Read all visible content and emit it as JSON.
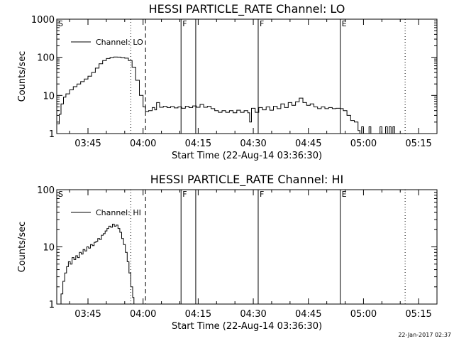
{
  "footer": {
    "timestamp": "22-Jan-2017 02:37"
  },
  "chart_data": [
    {
      "type": "line",
      "title": "HESSI PARTICLE_RATE Channel: LO",
      "xlabel": "Start Time (22-Aug-14 03:36:30)",
      "ylabel": "Counts/sec",
      "yscale": "log",
      "xlim": [
        "03:36:30",
        "05:20:00"
      ],
      "ylim": [
        1,
        1000
      ],
      "x_ticks": [
        "03:45",
        "04:00",
        "04:15",
        "04:30",
        "04:45",
        "05:00",
        "05:15"
      ],
      "y_ticks": [
        "1",
        "10",
        "100",
        "1000"
      ],
      "legend": {
        "position": "top-left",
        "entries": [
          "Channel: LO"
        ]
      },
      "markers": [
        {
          "time": "03:36:30",
          "label": "S",
          "style": "dotted"
        },
        {
          "time": "03:56:40",
          "label": "",
          "style": "dotted"
        },
        {
          "time": "04:00:40",
          "label": "",
          "style": "dashed"
        },
        {
          "time": "04:10:20",
          "label": "F",
          "style": "solid"
        },
        {
          "time": "04:14:20",
          "label": "",
          "style": "solid"
        },
        {
          "time": "04:31:20",
          "label": "F",
          "style": "solid"
        },
        {
          "time": "04:53:40",
          "label": "E",
          "style": "solid"
        },
        {
          "time": "05:11:20",
          "label": "",
          "style": "dotted"
        }
      ],
      "series": [
        {
          "name": "Channel: LO",
          "points": [
            [
              "03:36:40",
              1.8
            ],
            [
              "03:37:10",
              3.2
            ],
            [
              "03:37:40",
              6
            ],
            [
              "03:38:20",
              9
            ],
            [
              "03:39:00",
              11
            ],
            [
              "03:40:00",
              14
            ],
            [
              "03:41:00",
              17
            ],
            [
              "03:42:00",
              20
            ],
            [
              "03:43:00",
              23
            ],
            [
              "03:44:00",
              27
            ],
            [
              "03:45:00",
              32
            ],
            [
              "03:46:00",
              40
            ],
            [
              "03:47:00",
              52
            ],
            [
              "03:48:00",
              68
            ],
            [
              "03:49:00",
              82
            ],
            [
              "03:50:00",
              93
            ],
            [
              "03:51:00",
              99
            ],
            [
              "03:52:00",
              102
            ],
            [
              "03:53:00",
              101
            ],
            [
              "03:54:00",
              98
            ],
            [
              "03:55:00",
              95
            ],
            [
              "03:56:00",
              82
            ],
            [
              "03:57:00",
              55
            ],
            [
              "03:58:00",
              25
            ],
            [
              "03:59:00",
              10
            ],
            [
              "04:00:00",
              5
            ],
            [
              "04:00:40",
              3.8
            ],
            [
              "04:01:30",
              4.0
            ],
            [
              "04:02:30",
              4.8
            ],
            [
              "04:03:10",
              4.2
            ],
            [
              "04:03:40",
              6.5
            ],
            [
              "04:04:30",
              4.9
            ],
            [
              "04:05:30",
              5.2
            ],
            [
              "04:06:30",
              4.8
            ],
            [
              "04:07:30",
              5.1
            ],
            [
              "04:08:30",
              4.7
            ],
            [
              "04:09:30",
              5.0
            ],
            [
              "04:10:30",
              4.6
            ],
            [
              "04:11:30",
              5.2
            ],
            [
              "04:12:30",
              4.8
            ],
            [
              "04:13:30",
              5.3
            ],
            [
              "04:14:30",
              4.9
            ],
            [
              "04:15:30",
              5.8
            ],
            [
              "04:16:30",
              4.9
            ],
            [
              "04:17:30",
              5.2
            ],
            [
              "04:18:30",
              4.5
            ],
            [
              "04:19:30",
              4.0
            ],
            [
              "04:20:30",
              3.6
            ],
            [
              "04:21:30",
              4.0
            ],
            [
              "04:22:30",
              3.6
            ],
            [
              "04:23:30",
              4.0
            ],
            [
              "04:24:30",
              3.5
            ],
            [
              "04:25:30",
              4.1
            ],
            [
              "04:26:30",
              3.6
            ],
            [
              "04:27:30",
              4.0
            ],
            [
              "04:28:30",
              3.5
            ],
            [
              "04:29:00",
              2.0
            ],
            [
              "04:29:30",
              4.6
            ],
            [
              "04:30:30",
              3.6
            ],
            [
              "04:31:30",
              4.8
            ],
            [
              "04:32:30",
              4.2
            ],
            [
              "04:33:30",
              5.0
            ],
            [
              "04:34:30",
              4.1
            ],
            [
              "04:35:30",
              5.2
            ],
            [
              "04:36:30",
              4.5
            ],
            [
              "04:37:30",
              6.0
            ],
            [
              "04:38:30",
              4.8
            ],
            [
              "04:39:30",
              6.5
            ],
            [
              "04:40:30",
              5.5
            ],
            [
              "04:41:30",
              6.8
            ],
            [
              "04:42:30",
              8.5
            ],
            [
              "04:43:30",
              6.5
            ],
            [
              "04:44:30",
              5.5
            ],
            [
              "04:45:30",
              6.0
            ],
            [
              "04:46:30",
              5.0
            ],
            [
              "04:47:30",
              4.5
            ],
            [
              "04:48:30",
              5.0
            ],
            [
              "04:49:30",
              4.5
            ],
            [
              "04:50:30",
              4.8
            ],
            [
              "04:51:30",
              4.5
            ],
            [
              "04:52:30",
              4.6
            ],
            [
              "04:53:40",
              4.5
            ],
            [
              "04:54:30",
              4.0
            ],
            [
              "04:55:30",
              3.0
            ],
            [
              "04:56:30",
              2.2
            ],
            [
              "04:57:30",
              2.0
            ],
            [
              "04:58:30",
              1.2
            ],
            [
              "04:59:00",
              1.0
            ],
            [
              "04:59:30",
              1.5
            ],
            [
              "05:00:00",
              1.0
            ],
            [
              "05:01:00",
              1.0
            ],
            [
              "05:01:30",
              1.5
            ],
            [
              "05:02:00",
              1.0
            ],
            [
              "05:04:00",
              1.0
            ],
            [
              "05:04:30",
              1.5
            ],
            [
              "05:05:00",
              1.0
            ],
            [
              "05:06:00",
              1.5
            ],
            [
              "05:06:30",
              1.0
            ],
            [
              "05:07:00",
              1.5
            ],
            [
              "05:07:30",
              1.0
            ],
            [
              "05:08:00",
              1.5
            ],
            [
              "05:08:30",
              1.0
            ]
          ]
        }
      ]
    },
    {
      "type": "line",
      "title": "HESSI PARTICLE_RATE Channel: HI",
      "xlabel": "Start Time (22-Aug-14 03:36:30)",
      "ylabel": "Counts/sec",
      "yscale": "log",
      "xlim": [
        "03:36:30",
        "05:20:00"
      ],
      "ylim": [
        1,
        100
      ],
      "x_ticks": [
        "03:45",
        "04:00",
        "04:15",
        "04:30",
        "04:45",
        "05:00",
        "05:15"
      ],
      "y_ticks": [
        "1",
        "10",
        "100"
      ],
      "legend": {
        "position": "top-left",
        "entries": [
          "Channel: HI"
        ]
      },
      "markers": [
        {
          "time": "03:36:30",
          "label": "S",
          "style": "dotted"
        },
        {
          "time": "03:56:40",
          "label": "",
          "style": "dotted"
        },
        {
          "time": "04:00:40",
          "label": "",
          "style": "dashed"
        },
        {
          "time": "04:10:20",
          "label": "F",
          "style": "solid"
        },
        {
          "time": "04:14:20",
          "label": "",
          "style": "solid"
        },
        {
          "time": "04:31:20",
          "label": "F",
          "style": "solid"
        },
        {
          "time": "04:53:40",
          "label": "E",
          "style": "solid"
        },
        {
          "time": "05:11:20",
          "label": "",
          "style": "dotted"
        }
      ],
      "series": [
        {
          "name": "Channel: HI",
          "points": [
            [
              "03:37:10",
              1.0
            ],
            [
              "03:37:40",
              1.5
            ],
            [
              "03:38:10",
              2.5
            ],
            [
              "03:38:40",
              3.5
            ],
            [
              "03:39:10",
              4.5
            ],
            [
              "03:39:40",
              5.5
            ],
            [
              "03:40:10",
              5.0
            ],
            [
              "03:40:40",
              6.5
            ],
            [
              "03:41:10",
              6.0
            ],
            [
              "03:41:40",
              7.0
            ],
            [
              "03:42:10",
              6.5
            ],
            [
              "03:42:40",
              8.0
            ],
            [
              "03:43:10",
              7.5
            ],
            [
              "03:43:40",
              9.0
            ],
            [
              "03:44:10",
              8.5
            ],
            [
              "03:44:40",
              10.0
            ],
            [
              "03:45:10",
              9.5
            ],
            [
              "03:45:40",
              11.0
            ],
            [
              "03:46:10",
              10.5
            ],
            [
              "03:46:40",
              12.0
            ],
            [
              "03:47:10",
              12.5
            ],
            [
              "03:47:40",
              14.0
            ],
            [
              "03:48:10",
              13.5
            ],
            [
              "03:48:40",
              16.0
            ],
            [
              "03:49:10",
              17.0
            ],
            [
              "03:49:40",
              19.0
            ],
            [
              "03:50:10",
              21.0
            ],
            [
              "03:50:40",
              23.0
            ],
            [
              "03:51:10",
              22.0
            ],
            [
              "03:51:40",
              25.0
            ],
            [
              "03:52:10",
              23.0
            ],
            [
              "03:52:40",
              24.0
            ],
            [
              "03:53:10",
              21.0
            ],
            [
              "03:53:40",
              18.0
            ],
            [
              "03:54:10",
              14.0
            ],
            [
              "03:54:40",
              11.0
            ],
            [
              "03:55:10",
              8.0
            ],
            [
              "03:55:40",
              5.5
            ],
            [
              "03:56:10",
              3.5
            ],
            [
              "03:56:40",
              2.0
            ],
            [
              "03:57:10",
              1.3
            ],
            [
              "03:57:30",
              1.0
            ]
          ]
        }
      ]
    }
  ]
}
